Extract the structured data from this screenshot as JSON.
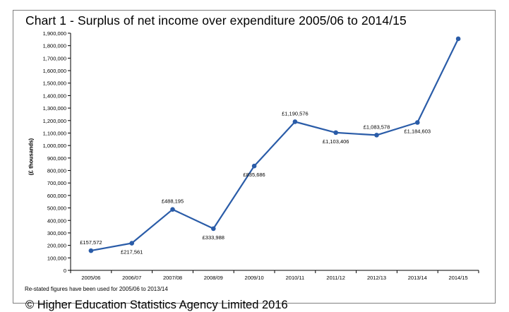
{
  "chart_data": {
    "type": "line",
    "title": "Chart 1 - Surplus of net income over expenditure 2005/06 to 2014/15",
    "xlabel": "",
    "ylabel": "(£ thousands)",
    "categories": [
      "2005/06",
      "2006/07",
      "2007/08",
      "2008/09",
      "2009/10",
      "2010/11",
      "2011/12",
      "2012/13",
      "2013/14",
      "2014/15"
    ],
    "series": [
      {
        "values": [
          157572,
          217561,
          488195,
          333988,
          835686,
          1190576,
          1103406,
          1083578,
          1184603,
          1855000
        ],
        "labels": [
          "£157,572",
          "£217,561",
          "£488,195",
          "£333,988",
          "£835,686",
          "£1,190,576",
          "£1,103,406",
          "£1,083,578",
          "£1,184,603",
          ""
        ],
        "color": "#2a5ca8"
      }
    ],
    "ylim": [
      0,
      1900000
    ],
    "yticks": [
      "0",
      "100,000",
      "200,000",
      "300,000",
      "400,000",
      "500,000",
      "600,000",
      "700,000",
      "800,000",
      "900,000",
      "1,000,000",
      "1,100,000",
      "1,200,000",
      "1,300,000",
      "1,400,000",
      "1,500,000",
      "1,600,000",
      "1,700,000",
      "1,800,000",
      "1,900,000"
    ],
    "grid": false,
    "legend": "none"
  },
  "footer": {
    "note": "Re-stated figures have been used for 2005/06 to 2013/14",
    "copyright": "© Higher Education Statistics Agency Limited 2016"
  }
}
